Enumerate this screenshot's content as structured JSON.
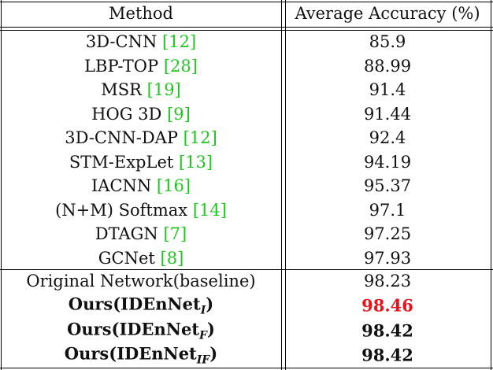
{
  "table": {
    "header": [
      "Method",
      "Average Accuracy (%)"
    ],
    "groups": [
      [
        {
          "method": "3D-CNN",
          "cite": "[12]",
          "accuracy": "85.9"
        },
        {
          "method": "LBP-TOP",
          "cite": "[28]",
          "accuracy": "88.99"
        },
        {
          "method": "MSR",
          "cite": "[19]",
          "accuracy": "91.4"
        },
        {
          "method": "HOG 3D",
          "cite": "[9]",
          "accuracy": "91.44"
        },
        {
          "method": "3D-CNN-DAP",
          "cite": "[12]",
          "accuracy": "92.4"
        },
        {
          "method": "STM-ExpLet",
          "cite": "[13]",
          "accuracy": "94.19"
        },
        {
          "method": "IACNN",
          "cite": "[16]",
          "accuracy": "95.37"
        },
        {
          "method": "(N+M) Softmax",
          "cite": "[14]",
          "accuracy": "97.1"
        },
        {
          "method": "DTAGN",
          "cite": "[7]",
          "accuracy": "97.25"
        },
        {
          "method": "GCNet",
          "cite": "[8]",
          "accuracy": "97.93"
        }
      ],
      [
        {
          "method": "Original Network(baseline)",
          "accuracy": "98.23"
        },
        {
          "method": "Ours(IDEnNet",
          "sub": "I",
          "close": ")",
          "accuracy": "98.46",
          "bold": true,
          "color": "#e8141c"
        },
        {
          "method": "Ours(IDEnNet",
          "sub": "F",
          "close": ")",
          "accuracy": "98.42",
          "bold": true
        },
        {
          "method": "Ours(IDEnNet",
          "sub": "IF",
          "close": ")",
          "accuracy": "98.42",
          "bold": true
        }
      ]
    ],
    "cite_color": "#1ec81e"
  }
}
